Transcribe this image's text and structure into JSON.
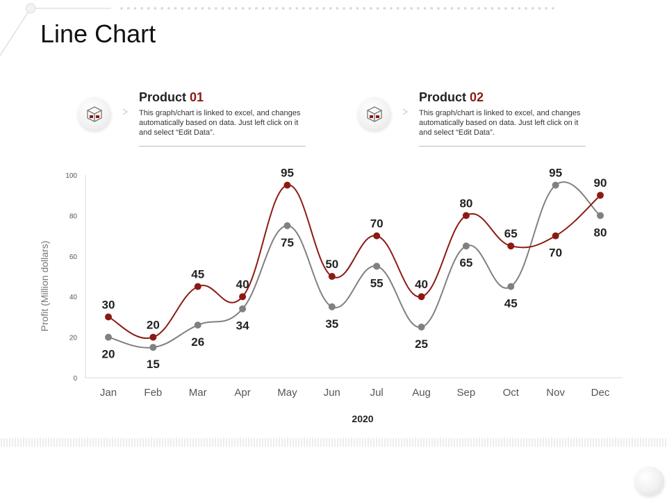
{
  "page": {
    "title": "Line Chart"
  },
  "products": [
    {
      "label": "Product",
      "number": "01",
      "icon": "box-icon",
      "description": "This graph/chart is linked to excel, and changes automatically based on data. Just left click on it and select “Edit Data”."
    },
    {
      "label": "Product",
      "number": "02",
      "icon": "box-icon",
      "description": "This graph/chart is linked to excel, and changes automatically based on data. Just left click on it and select “Edit Data”."
    }
  ],
  "chart_data": {
    "type": "line",
    "xlabel": "2020",
    "ylabel": "Profit   (Million dollars)",
    "ylim": [
      0,
      100
    ],
    "yticks": [
      0,
      20,
      40,
      60,
      80,
      100
    ],
    "categories": [
      "Jan",
      "Feb",
      "Mar",
      "Apr",
      "May",
      "Jun",
      "Jul",
      "Aug",
      "Sep",
      "Oct",
      "Nov",
      "Dec"
    ],
    "series": [
      {
        "color": "#808080",
        "values": [
          20,
          15,
          26,
          34,
          75,
          35,
          55,
          25,
          65,
          45,
          95,
          80
        ]
      },
      {
        "color": "#8b1a13",
        "values": [
          30,
          20,
          45,
          40,
          95,
          50,
          70,
          40,
          80,
          65,
          70,
          90
        ]
      }
    ],
    "grid": false,
    "smooth": true
  }
}
